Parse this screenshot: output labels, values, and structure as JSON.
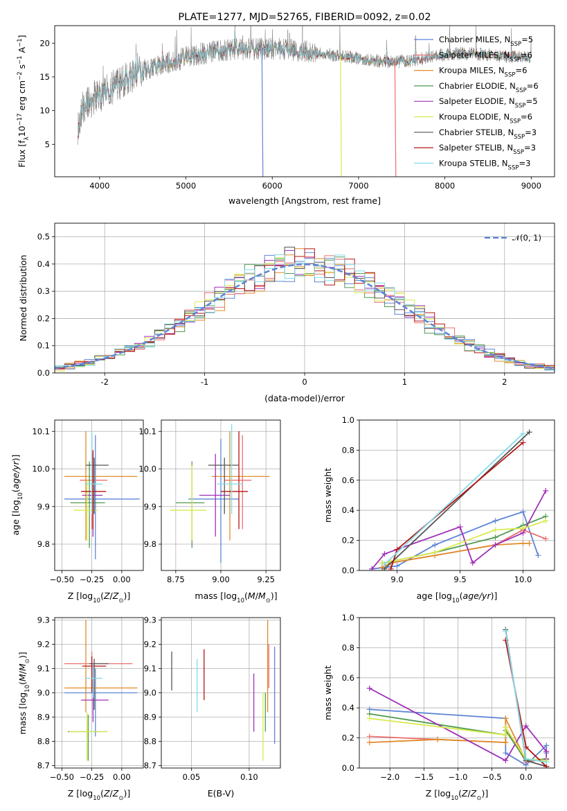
{
  "figure": {
    "title": "PLATE=1277, MJD=52765, FIBERID=0092, z=0.02"
  },
  "chart_data": [
    {
      "id": "spectrum",
      "type": "line",
      "title": "PLATE=1277, MJD=52765, FIBERID=0092, z=0.02",
      "xlabel": "wavelength [Angstrom, rest frame]",
      "ylabel": "Flux [f_λ 10^-17 erg cm^-2 s^-1 A^-1]",
      "xlim": [
        3480,
        9270
      ],
      "ylim": [
        0.2,
        22.6
      ],
      "xticks": [
        4000,
        5000,
        6000,
        7000,
        8000,
        9000
      ],
      "yticks": [
        5,
        10,
        15,
        20
      ],
      "grid": false,
      "legend_position": "top-right",
      "data_color": "#7f7f7f",
      "data_profile": {
        "x": [
          3750,
          3800,
          3900,
          4000,
          4100,
          4200,
          4300,
          4400,
          4500,
          4600,
          4800,
          5000,
          5200,
          5400,
          5600,
          5800,
          6000,
          6200,
          6400,
          6600,
          6800,
          7000,
          7200,
          7400,
          7600,
          7800,
          8000,
          8200,
          8400,
          8600,
          8800,
          9000
        ],
        "y": [
          7.5,
          10.5,
          11.5,
          12.2,
          13.0,
          13.8,
          14.5,
          15.3,
          15.9,
          16.4,
          17.2,
          17.9,
          18.5,
          18.9,
          19.1,
          19.2,
          19.2,
          19.0,
          18.7,
          18.4,
          18.1,
          17.8,
          17.4,
          17.2,
          17.4,
          17.9,
          18.3,
          18.5,
          18.4,
          18.2,
          18.0,
          17.8
        ]
      },
      "model_dropouts": [
        {
          "model": "Chabrier MILES",
          "x": 5880
        },
        {
          "model": "Kroupa ELODIE",
          "x": 6790
        },
        {
          "model": "Salpeter MILES",
          "x": 7420
        }
      ],
      "legend": [
        {
          "label": "Chabrier MILES, N",
          "sub": "SSP",
          "suffix": "=5",
          "color": "#5e85d6"
        },
        {
          "label": "Salpeter MILES, N",
          "sub": "SSP",
          "suffix": "=6",
          "color": "#ec6e6e"
        },
        {
          "label": "Kroupa MILES, N",
          "sub": "SSP",
          "suffix": "=6",
          "color": "#e08a28"
        },
        {
          "label": "Chabrier ELODIE, N",
          "sub": "SSP",
          "suffix": "=6",
          "color": "#4f9a4f"
        },
        {
          "label": "Salpeter ELODIE, N",
          "sub": "SSP",
          "suffix": "=5",
          "color": "#9e2fb7"
        },
        {
          "label": "Kroupa ELODIE, N",
          "sub": "SSP",
          "suffix": "=6",
          "color": "#d7ea4c"
        },
        {
          "label": "Chabrier STELIB, N",
          "sub": "SSP",
          "suffix": "=3",
          "color": "#555555"
        },
        {
          "label": "Salpeter STELIB, N",
          "sub": "SSP",
          "suffix": "=3",
          "color": "#b51313"
        },
        {
          "label": "Kroupa STELIB, N",
          "sub": "SSP",
          "suffix": "=3",
          "color": "#82dcea"
        }
      ]
    },
    {
      "id": "residuals",
      "type": "histogram",
      "xlabel": "(data-model)/error",
      "ylabel": "Normed distribution",
      "xlim": [
        -2.5,
        2.5
      ],
      "ylim": [
        0,
        0.55
      ],
      "xticks": [
        -2,
        -1,
        0,
        1,
        2
      ],
      "yticks": [
        0.0,
        0.1,
        0.2,
        0.3,
        0.4,
        0.5
      ],
      "grid": true,
      "legend_position": "top-right",
      "legend_label": "𝒩(0, 1)",
      "gaussian": {
        "mean": 0,
        "sigma": 1,
        "color": "#5e85d6"
      },
      "bin_width": 0.1,
      "hist_series": [
        {
          "model": "Chabrier MILES",
          "color": "#5e85d6"
        },
        {
          "model": "Salpeter MILES",
          "color": "#ec6e6e"
        },
        {
          "model": "Kroupa MILES",
          "color": "#e08a28"
        },
        {
          "model": "Chabrier ELODIE",
          "color": "#4f9a4f"
        },
        {
          "model": "Salpeter ELODIE",
          "color": "#9e2fb7"
        },
        {
          "model": "Kroupa ELODIE",
          "color": "#d7ea4c"
        },
        {
          "model": "Chabrier STELIB",
          "color": "#555555"
        },
        {
          "model": "Salpeter STELIB",
          "color": "#b51313"
        },
        {
          "model": "Kroupa STELIB",
          "color": "#82dcea"
        }
      ]
    },
    {
      "id": "age-vs-Z",
      "type": "errorbar",
      "xlabel": "Z [log10(Z/Z☉)]",
      "ylabel": "age  [log10(age/yr)]",
      "xlim": [
        -0.56,
        0.18
      ],
      "ylim": [
        9.73,
        10.13
      ],
      "xticks": [
        -0.5,
        -0.25,
        0.0
      ],
      "xticklabels": [
        "−0.50",
        "−0.25",
        "0.00"
      ],
      "yticks": [
        9.8,
        9.9,
        10.0,
        10.1
      ],
      "grid": true,
      "points": [
        {
          "color": "#5e85d6",
          "x": -0.22,
          "xl": -0.48,
          "xh": 0.15,
          "y": 9.92,
          "yl": 9.76,
          "yh": 10.09
        },
        {
          "color": "#ec6e6e",
          "x": -0.25,
          "xl": -0.35,
          "xh": -0.12,
          "y": 9.97,
          "yl": 9.84,
          "yh": 10.09
        },
        {
          "color": "#e08a28",
          "x": -0.3,
          "xl": -0.48,
          "xh": 0.13,
          "y": 9.98,
          "yl": 9.81,
          "yh": 10.1
        },
        {
          "color": "#4f9a4f",
          "x": -0.27,
          "xl": -0.43,
          "xh": -0.14,
          "y": 9.91,
          "yl": 9.79,
          "yh": 10.02
        },
        {
          "color": "#9e2fb7",
          "x": -0.24,
          "xl": -0.33,
          "xh": -0.16,
          "y": 9.93,
          "yl": 9.82,
          "yh": 10.04
        },
        {
          "color": "#d7ea4c",
          "x": -0.29,
          "xl": -0.4,
          "xh": -0.2,
          "y": 9.89,
          "yl": 9.81,
          "yh": 9.97
        },
        {
          "color": "#555555",
          "x": -0.23,
          "xl": -0.3,
          "xh": -0.11,
          "y": 10.01,
          "yl": 9.88,
          "yh": 10.03
        },
        {
          "color": "#b51313",
          "x": -0.24,
          "xl": -0.34,
          "xh": -0.13,
          "y": 9.94,
          "yl": 9.84,
          "yh": 10.05
        },
        {
          "color": "#82dcea",
          "x": -0.25,
          "xl": -0.31,
          "xh": -0.16,
          "y": 9.96,
          "yl": 9.88,
          "yh": 10.1
        }
      ]
    },
    {
      "id": "age-vs-mass",
      "type": "errorbar",
      "xlabel": "mass [log10(M/M☉)]",
      "ylabel": "",
      "xlim": [
        8.67,
        9.33
      ],
      "ylim": [
        9.73,
        10.13
      ],
      "xticks": [
        8.75,
        9.0,
        9.25
      ],
      "xticklabels": [
        "8.75",
        "9.00",
        "9.25"
      ],
      "yticks": [
        9.8,
        9.9,
        10.0,
        10.1
      ],
      "grid": true,
      "points": [
        {
          "color": "#5e85d6",
          "x": 9.0,
          "xl": 8.82,
          "xh": 9.1,
          "y": 9.92,
          "yl": 9.75,
          "yh": 10.08
        },
        {
          "color": "#ec6e6e",
          "x": 9.12,
          "xl": 9.02,
          "xh": 9.17,
          "y": 9.97,
          "yl": 9.84,
          "yh": 10.09
        },
        {
          "color": "#e08a28",
          "x": 9.05,
          "xl": 8.95,
          "xh": 9.27,
          "y": 9.98,
          "yl": 9.81,
          "yh": 10.1
        },
        {
          "color": "#4f9a4f",
          "x": 8.84,
          "xl": 8.75,
          "xh": 8.91,
          "y": 9.91,
          "yl": 9.79,
          "yh": 10.02
        },
        {
          "color": "#9e2fb7",
          "x": 8.97,
          "xl": 8.88,
          "xh": 9.05,
          "y": 9.93,
          "yl": 9.82,
          "yh": 10.04
        },
        {
          "color": "#d7ea4c",
          "x": 8.84,
          "xl": 8.72,
          "xh": 8.92,
          "y": 9.89,
          "yl": 9.81,
          "yh": 10.01
        },
        {
          "color": "#555555",
          "x": 9.02,
          "xl": 8.93,
          "xh": 9.1,
          "y": 10.01,
          "yl": 9.88,
          "yh": 10.03
        },
        {
          "color": "#b51313",
          "x": 9.1,
          "xl": 9.0,
          "xh": 9.15,
          "y": 9.94,
          "yl": 9.84,
          "yh": 10.1
        },
        {
          "color": "#82dcea",
          "x": 9.06,
          "xl": 8.98,
          "xh": 9.12,
          "y": 9.96,
          "yl": 9.88,
          "yh": 10.12
        }
      ]
    },
    {
      "id": "weight-vs-age",
      "type": "line",
      "xlabel": "age  [log10(age/yr)]",
      "ylabel": "mass weight",
      "xlim": [
        8.7,
        10.25
      ],
      "ylim": [
        0,
        1
      ],
      "xticks": [
        9.0,
        9.5,
        10.0
      ],
      "xticklabels": [
        "9.0",
        "9.5",
        "10.0"
      ],
      "yticks": [
        0.0,
        0.2,
        0.4,
        0.6,
        0.8,
        1.0
      ],
      "grid": true,
      "series": [
        {
          "color": "#5e85d6",
          "x": [
            8.8,
            8.9,
            9.0,
            9.3,
            9.78,
            10.0,
            10.12
          ],
          "y": [
            0.01,
            0.02,
            0.03,
            0.17,
            0.33,
            0.39,
            0.1
          ]
        },
        {
          "color": "#ec6e6e",
          "x": [
            8.88,
            8.95,
            9.3,
            9.78,
            10.0,
            10.18
          ],
          "y": [
            0.02,
            0.05,
            0.1,
            0.17,
            0.27,
            0.21
          ]
        },
        {
          "color": "#e08a28",
          "x": [
            8.88,
            8.95,
            9.3,
            9.78,
            10.0,
            10.05
          ],
          "y": [
            0.02,
            0.05,
            0.1,
            0.17,
            0.18,
            0.18
          ]
        },
        {
          "color": "#4f9a4f",
          "x": [
            8.88,
            8.95,
            9.3,
            9.78,
            10.0,
            10.18
          ],
          "y": [
            0.05,
            0.06,
            0.12,
            0.22,
            0.3,
            0.36
          ]
        },
        {
          "color": "#9e2fb7",
          "x": [
            8.8,
            8.9,
            9.5,
            9.6,
            9.78,
            10.0,
            10.18
          ],
          "y": [
            0.01,
            0.11,
            0.29,
            0.05,
            0.17,
            0.25,
            0.53
          ]
        },
        {
          "color": "#d7ea4c",
          "x": [
            8.88,
            8.95,
            9.3,
            9.78,
            10.0,
            10.18
          ],
          "y": [
            0.05,
            0.06,
            0.12,
            0.27,
            0.28,
            0.33
          ]
        },
        {
          "color": "#555555",
          "x": [
            8.9,
            10.05
          ],
          "y": [
            0.01,
            0.92
          ]
        },
        {
          "color": "#b51313",
          "x": [
            8.95,
            9.0,
            10.0
          ],
          "y": [
            0.01,
            0.14,
            0.85
          ]
        },
        {
          "color": "#82dcea",
          "x": [
            8.9,
            10.0
          ],
          "y": [
            0.04,
            0.91
          ]
        }
      ]
    },
    {
      "id": "mass-vs-Z",
      "type": "errorbar",
      "xlabel": "Z [log10(Z/Z☉)]",
      "ylabel": "mass [log10(M/M☉)]",
      "xlim": [
        -0.56,
        0.18
      ],
      "ylim": [
        8.69,
        9.31
      ],
      "xticks": [
        -0.5,
        -0.25,
        0.0
      ],
      "xticklabels": [
        "−0.50",
        "−0.25",
        "0.00"
      ],
      "yticks": [
        8.7,
        8.8,
        8.9,
        9.0,
        9.1,
        9.2,
        9.3
      ],
      "grid": true,
      "points": [
        {
          "color": "#5e85d6",
          "x": -0.22,
          "xl": -0.48,
          "xh": 0.13,
          "y": 9.0,
          "yl": 8.82,
          "yh": 9.1
        },
        {
          "color": "#ec6e6e",
          "x": -0.25,
          "xl": -0.48,
          "xh": 0.09,
          "y": 9.12,
          "yl": 9.02,
          "yh": 9.17
        },
        {
          "color": "#e08a28",
          "x": -0.3,
          "xl": -0.48,
          "xh": 0.13,
          "y": 9.02,
          "yl": 8.92,
          "yh": 9.3
        },
        {
          "color": "#4f9a4f",
          "x": -0.28,
          "xl": -0.45,
          "xh": -0.12,
          "y": 8.84,
          "yl": 8.72,
          "yh": 8.91
        },
        {
          "color": "#9e2fb7",
          "x": -0.24,
          "xl": -0.34,
          "xh": -0.11,
          "y": 8.97,
          "yl": 8.88,
          "yh": 9.05
        },
        {
          "color": "#d7ea4c",
          "x": -0.29,
          "xl": -0.44,
          "xh": -0.12,
          "y": 8.84,
          "yl": 8.72,
          "yh": 8.92
        },
        {
          "color": "#555555",
          "x": -0.23,
          "xl": -0.27,
          "xh": -0.11,
          "y": 9.12,
          "yl": 8.93,
          "yh": 9.14
        },
        {
          "color": "#b51313",
          "x": -0.25,
          "xl": -0.33,
          "xh": -0.13,
          "y": 9.11,
          "yl": 9.0,
          "yh": 9.15
        },
        {
          "color": "#82dcea",
          "x": -0.24,
          "xl": -0.3,
          "xh": -0.16,
          "y": 9.06,
          "yl": 8.98,
          "yh": 9.12
        }
      ]
    },
    {
      "id": "mass-vs-ebv",
      "type": "errorbar",
      "xlabel": "E(B-V)",
      "ylabel": "",
      "xlim": [
        0.024,
        0.127
      ],
      "ylim": [
        8.69,
        9.31
      ],
      "xticks": [
        0.05,
        0.1
      ],
      "xticklabels": [
        "0.05",
        "0.10"
      ],
      "yticks": [
        8.7,
        8.8,
        8.9,
        9.0,
        9.1,
        9.2,
        9.3
      ],
      "grid": true,
      "points": [
        {
          "color": "#555555",
          "x": 0.033,
          "y": 9.1,
          "yl": 9.01,
          "yh": 9.17
        },
        {
          "color": "#82dcea",
          "x": 0.055,
          "y": 9.02,
          "yl": 8.92,
          "yh": 9.14
        },
        {
          "color": "#b51313",
          "x": 0.061,
          "y": 9.1,
          "yl": 8.97,
          "yh": 9.18
        },
        {
          "color": "#9e2fb7",
          "x": 0.104,
          "y": 8.97,
          "yl": 8.84,
          "yh": 9.08
        },
        {
          "color": "#d7ea4c",
          "x": 0.112,
          "y": 8.84,
          "yl": 8.72,
          "yh": 9.0
        },
        {
          "color": "#4f9a4f",
          "x": 0.114,
          "y": 8.93,
          "yl": 8.84,
          "yh": 9.0
        },
        {
          "color": "#e08a28",
          "x": 0.116,
          "y": 9.12,
          "yl": 8.92,
          "yh": 9.3
        },
        {
          "color": "#ec6e6e",
          "x": 0.117,
          "y": 9.12,
          "yl": 9.02,
          "yh": 9.2
        },
        {
          "color": "#5e85d6",
          "x": 0.122,
          "y": 9.0,
          "yl": 8.79,
          "yh": 9.19
        }
      ]
    },
    {
      "id": "weight-vs-Z",
      "type": "line",
      "xlabel": "Z [log10(Z/Z☉)]",
      "ylabel": "mass weight",
      "xlim": [
        -2.45,
        0.42
      ],
      "ylim": [
        0,
        1
      ],
      "xticks": [
        -2.0,
        -1.5,
        -1.0,
        -0.5,
        0.0
      ],
      "xticklabels": [
        "−2.0",
        "−1.5",
        "−1.0",
        "−0.5",
        "0.0"
      ],
      "yticks": [
        0.0,
        0.2,
        0.4,
        0.6,
        0.8,
        1.0
      ],
      "grid": true,
      "series": [
        {
          "color": "#5e85d6",
          "x": [
            -2.3,
            -0.3,
            -0.3,
            0.0,
            0.3,
            0.3
          ],
          "y": [
            0.39,
            0.33,
            0.1,
            0.02,
            0.15,
            0.1
          ]
        },
        {
          "color": "#ec6e6e",
          "x": [
            -2.3,
            -1.3,
            -0.3,
            -0.3,
            0.0,
            0.3
          ],
          "y": [
            0.21,
            0.19,
            0.17,
            0.27,
            0.04,
            0.06
          ]
        },
        {
          "color": "#e08a28",
          "x": [
            -2.3,
            -1.3,
            -0.3,
            -0.3,
            0.0,
            0.3
          ],
          "y": [
            0.17,
            0.19,
            0.17,
            0.33,
            0.05,
            0.06
          ]
        },
        {
          "color": "#4f9a4f",
          "x": [
            -2.3,
            -0.3,
            -0.3,
            0.0,
            0.3
          ],
          "y": [
            0.36,
            0.22,
            0.25,
            0.05,
            0.06
          ]
        },
        {
          "color": "#9e2fb7",
          "x": [
            -2.3,
            -0.3,
            0.0,
            0.3,
            0.3
          ],
          "y": [
            0.53,
            0.05,
            0.28,
            0.11,
            0.06
          ]
        },
        {
          "color": "#d7ea4c",
          "x": [
            -2.3,
            -0.3,
            -0.3,
            0.0,
            0.3
          ],
          "y": [
            0.33,
            0.22,
            0.27,
            0.06,
            0.05
          ]
        },
        {
          "color": "#555555",
          "x": [
            -0.3,
            0.0,
            0.3
          ],
          "y": [
            0.92,
            0.05,
            0.01
          ]
        },
        {
          "color": "#b51313",
          "x": [
            -0.3,
            0.0,
            0.3
          ],
          "y": [
            0.85,
            0.14,
            0.01
          ]
        },
        {
          "color": "#82dcea",
          "x": [
            -0.3,
            0.0,
            0.3
          ],
          "y": [
            0.91,
            0.06,
            0.04
          ]
        }
      ]
    }
  ]
}
